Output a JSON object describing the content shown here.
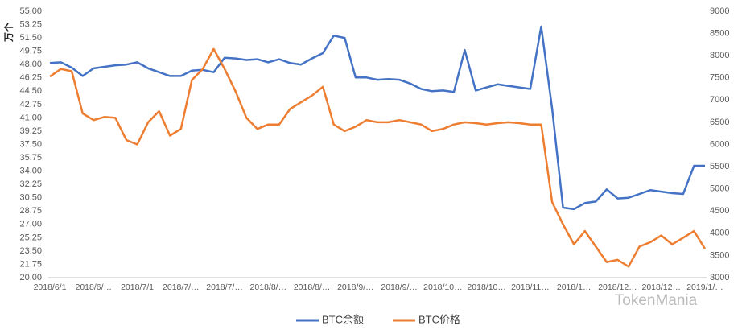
{
  "chart_data": {
    "type": "line",
    "y_label": "万个",
    "watermark": "TokenMania",
    "categories": [
      "2018/6/1",
      null,
      null,
      null,
      "2018/6/…",
      null,
      null,
      null,
      "2018/7/1",
      null,
      null,
      null,
      "2018/7/…",
      null,
      null,
      null,
      "2018/7/…",
      null,
      null,
      null,
      "2018/8/…",
      null,
      null,
      null,
      "2018/8/…",
      null,
      null,
      null,
      "2018/9/…",
      null,
      null,
      null,
      "2018/9/…",
      null,
      null,
      null,
      "2018/10…",
      null,
      null,
      null,
      "2018/10…",
      null,
      null,
      null,
      "2018/11…",
      null,
      null,
      null,
      "2018/1…",
      null,
      null,
      null,
      "2018/12…",
      null,
      null,
      null,
      "2018/12…",
      null,
      null,
      null,
      "2019/1/…"
    ],
    "series": [
      {
        "name": "BTC余额",
        "color": "#4472c4",
        "values": [
          48.2,
          48.3,
          47.6,
          46.5,
          47.5,
          47.7,
          47.9,
          48.0,
          48.3,
          47.5,
          47.0,
          46.5,
          46.5,
          47.2,
          47.3,
          47.0,
          48.9,
          48.8,
          48.6,
          48.7,
          48.3,
          48.7,
          48.2,
          48.0,
          48.8,
          49.5,
          51.8,
          51.5,
          46.3,
          46.3,
          46.0,
          46.1,
          46.0,
          45.5,
          44.8,
          44.5,
          44.6,
          44.4,
          49.9,
          44.6,
          45.0,
          45.4,
          45.2,
          45.0,
          44.8,
          53.0,
          42.2,
          29.2,
          29.0,
          29.8,
          30.0,
          31.6,
          30.4,
          30.5,
          31.0,
          31.5,
          31.3,
          31.1,
          31.0,
          34.7,
          34.7
        ]
      },
      {
        "name": "BTC价格",
        "color": "#ed7d31",
        "axis": "y2",
        "values": [
          7530,
          7700,
          7650,
          6700,
          6550,
          6620,
          6600,
          6100,
          6000,
          6500,
          6750,
          6200,
          6350,
          7450,
          7700,
          8150,
          7700,
          7200,
          6600,
          6350,
          6450,
          6450,
          6800,
          6950,
          7100,
          7300,
          6450,
          6300,
          6400,
          6550,
          6500,
          6500,
          6550,
          6500,
          6450,
          6300,
          6350,
          6450,
          6500,
          6480,
          6450,
          6480,
          6500,
          6480,
          6450,
          6450,
          4700,
          4200,
          3750,
          4050,
          3700,
          3350,
          3400,
          3250,
          3700,
          3800,
          3950,
          3750,
          3900,
          4050,
          3650
        ]
      }
    ],
    "ylim": [
      20,
      55
    ],
    "yticks": [
      {
        "value": 20,
        "label": "20.00"
      },
      {
        "value": 21.75,
        "label": "21.75"
      },
      {
        "value": 23.5,
        "label": "23.50"
      },
      {
        "value": 25.25,
        "label": "25.25"
      },
      {
        "value": 27,
        "label": "27.00"
      },
      {
        "value": 28.75,
        "label": "28.75"
      },
      {
        "value": 30.5,
        "label": "30.50"
      },
      {
        "value": 32.25,
        "label": "32.25"
      },
      {
        "value": 34,
        "label": "34.00"
      },
      {
        "value": 35.75,
        "label": "35.75"
      },
      {
        "value": 37.5,
        "label": "37.50"
      },
      {
        "value": 39.25,
        "label": "39.25"
      },
      {
        "value": 41,
        "label": "41.00"
      },
      {
        "value": 42.75,
        "label": "42.75"
      },
      {
        "value": 44.5,
        "label": "44.50"
      },
      {
        "value": 46.25,
        "label": "46.25"
      },
      {
        "value": 48,
        "label": "48.00"
      },
      {
        "value": 49.75,
        "label": "49.75"
      },
      {
        "value": 51.5,
        "label": "51.50"
      },
      {
        "value": 53.25,
        "label": "53.25"
      },
      {
        "value": 55,
        "label": "55.00"
      }
    ],
    "y2lim": [
      3000,
      9000
    ],
    "y2ticks": [
      3000,
      3500,
      4000,
      4500,
      5000,
      5500,
      6000,
      6500,
      7000,
      7500,
      8000,
      8500,
      9000
    ],
    "grid": false
  }
}
